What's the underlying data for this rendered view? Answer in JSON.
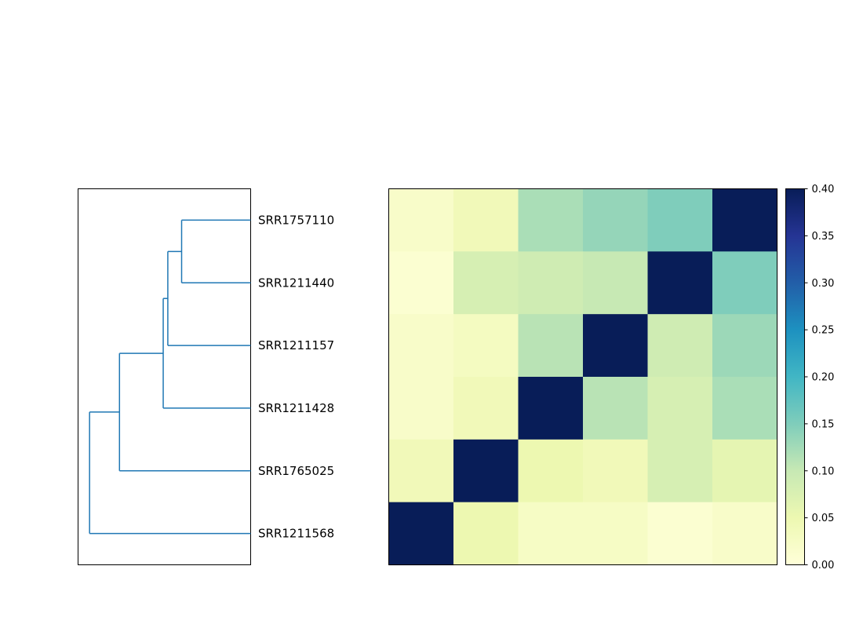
{
  "chart_data": {
    "type": "heatmap",
    "row_labels": [
      "SRR1757110",
      "SRR1211440",
      "SRR1211157",
      "SRR1211428",
      "SRR1765025",
      "SRR1211568"
    ],
    "values": [
      [
        0.02,
        0.04,
        0.12,
        0.135,
        0.15,
        0.4
      ],
      [
        0.01,
        0.08,
        0.09,
        0.1,
        0.4,
        0.15
      ],
      [
        0.02,
        0.03,
        0.11,
        0.4,
        0.09,
        0.13
      ],
      [
        0.02,
        0.04,
        0.4,
        0.11,
        0.08,
        0.12
      ],
      [
        0.04,
        0.4,
        0.05,
        0.04,
        0.08,
        0.06
      ],
      [
        0.4,
        0.05,
        0.025,
        0.025,
        0.01,
        0.02
      ]
    ],
    "colorbar": {
      "range": [
        0,
        0.4
      ],
      "ticks": [
        "0.00",
        "0.05",
        "0.10",
        "0.15",
        "0.20",
        "0.25",
        "0.30",
        "0.35",
        "0.40"
      ],
      "colormap": "YlGnBu"
    },
    "dendrogram": {
      "orientation": "left",
      "color": "#1f77b4",
      "links": [
        {
          "leaves": [
            0,
            1
          ],
          "height": 0.3
        },
        {
          "leaves": [
            0,
            1,
            2
          ],
          "height": 0.36
        },
        {
          "leaves": [
            0,
            1,
            2,
            3
          ],
          "height": 0.38
        },
        {
          "leaves": [
            0,
            1,
            2,
            3,
            4
          ],
          "height": 0.57
        },
        {
          "leaves": [
            0,
            1,
            2,
            3,
            4,
            5
          ],
          "height": 0.7
        }
      ]
    },
    "grid": false
  }
}
